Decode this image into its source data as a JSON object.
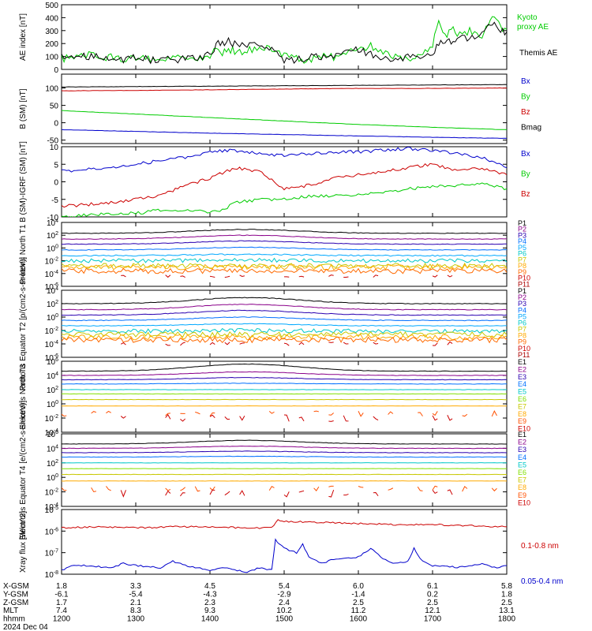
{
  "chart_data": [
    {
      "type": "line",
      "ylabel": "AE index [nT]",
      "ylim": [
        0,
        500
      ],
      "ytick_labels": [
        "0",
        "100",
        "200",
        "300",
        "400",
        "500"
      ],
      "ytick_values": [
        0,
        100,
        200,
        300,
        400,
        500
      ],
      "log": false,
      "series": [
        {
          "name": "Kyoto proxy AE",
          "color": "#00cc00",
          "x": [
            1200,
            1210,
            1220,
            1230,
            1240,
            1250,
            1300,
            1310,
            1320,
            1330,
            1340,
            1350,
            1400,
            1405,
            1410,
            1415,
            1420,
            1430,
            1440,
            1450,
            1500,
            1510,
            1520,
            1530,
            1540,
            1550,
            1600,
            1610,
            1620,
            1630,
            1640,
            1650,
            1700,
            1705,
            1710,
            1715,
            1720,
            1730,
            1740,
            1745,
            1750,
            1755,
            1800
          ],
          "y": [
            80,
            95,
            110,
            100,
            90,
            85,
            95,
            80,
            75,
            90,
            85,
            80,
            110,
            170,
            120,
            150,
            145,
            140,
            180,
            170,
            100,
            80,
            70,
            110,
            90,
            120,
            160,
            180,
            120,
            90,
            80,
            100,
            200,
            350,
            250,
            330,
            260,
            300,
            240,
            340,
            400,
            330,
            310
          ]
        },
        {
          "name": "Themis AE",
          "color": "#000000",
          "x": [
            1200,
            1210,
            1220,
            1230,
            1240,
            1250,
            1300,
            1310,
            1320,
            1330,
            1340,
            1350,
            1400,
            1405,
            1410,
            1415,
            1420,
            1430,
            1440,
            1450,
            1500,
            1510,
            1520,
            1530,
            1540,
            1550,
            1600,
            1610,
            1620,
            1630,
            1640,
            1650,
            1700,
            1705,
            1710,
            1715,
            1720,
            1730,
            1740,
            1745,
            1750,
            1755,
            1800
          ],
          "y": [
            100,
            90,
            105,
            95,
            90,
            80,
            90,
            75,
            70,
            80,
            80,
            90,
            120,
            190,
            210,
            220,
            200,
            170,
            210,
            150,
            80,
            70,
            90,
            100,
            110,
            120,
            150,
            120,
            90,
            80,
            90,
            100,
            120,
            190,
            230,
            200,
            240,
            230,
            300,
            320,
            350,
            310,
            290
          ]
        }
      ]
    },
    {
      "type": "line",
      "ylabel": "B (SM) [nT]",
      "ylim": [
        -60,
        140
      ],
      "ytick_labels": [
        "-50",
        "0",
        "50",
        "100"
      ],
      "ytick_values": [
        -50,
        0,
        50,
        100
      ],
      "log": false,
      "series": [
        {
          "name": "Bx",
          "color": "#0000cc",
          "x": [
            1200,
            1300,
            1400,
            1500,
            1600,
            1700,
            1800
          ],
          "y": [
            -20,
            -25,
            -30,
            -34,
            -38,
            -42,
            -45
          ]
        },
        {
          "name": "By",
          "color": "#00cc00",
          "x": [
            1200,
            1300,
            1400,
            1500,
            1600,
            1700,
            1800
          ],
          "y": [
            35,
            25,
            15,
            5,
            -5,
            -13,
            -20
          ]
        },
        {
          "name": "Bz",
          "color": "#cc0000",
          "x": [
            1200,
            1300,
            1400,
            1500,
            1600,
            1700,
            1800
          ],
          "y": [
            92,
            93,
            95,
            97,
            99,
            99,
            100
          ]
        },
        {
          "name": "Bmag",
          "color": "#000000",
          "x": [
            1200,
            1800
          ],
          "y": [
            103,
            110
          ]
        }
      ]
    },
    {
      "type": "line",
      "ylabel": "B (SM)-IGRF (SM) [nT]",
      "ylim": [
        -10,
        10
      ],
      "ytick_labels": [
        "-10",
        "-5",
        "0",
        "5",
        "10"
      ],
      "ytick_values": [
        -10,
        -5,
        0,
        5,
        10
      ],
      "log": false,
      "series": [
        {
          "name": "Bx",
          "color": "#0000cc",
          "x": [
            1200,
            1220,
            1240,
            1300,
            1320,
            1340,
            1400,
            1420,
            1440,
            1500,
            1520,
            1540,
            1600,
            1620,
            1640,
            1700,
            1720,
            1740,
            1800
          ],
          "y": [
            3,
            3.5,
            4,
            5,
            6,
            7,
            8.5,
            9,
            8,
            7.5,
            8,
            8.5,
            8.5,
            9,
            9.5,
            9,
            8,
            7,
            4
          ]
        },
        {
          "name": "By",
          "color": "#00cc00",
          "x": [
            1200,
            1220,
            1240,
            1300,
            1320,
            1340,
            1400,
            1410,
            1420,
            1440,
            1500,
            1520,
            1540,
            1600,
            1620,
            1640,
            1700,
            1720,
            1740,
            1800
          ],
          "y": [
            -10,
            -9.5,
            -9,
            -9,
            -8,
            -8,
            -8.5,
            -8,
            -6,
            -5,
            -5,
            -4,
            -4,
            -3.5,
            -3,
            -2,
            -1.5,
            -1,
            -0.5,
            -2
          ]
        },
        {
          "name": "Bz",
          "color": "#cc0000",
          "x": [
            1200,
            1220,
            1240,
            1300,
            1320,
            1340,
            1400,
            1420,
            1440,
            1500,
            1520,
            1540,
            1600,
            1620,
            1640,
            1700,
            1720,
            1740,
            1800
          ],
          "y": [
            -7,
            -6.5,
            -6,
            -5,
            -4,
            -1,
            1,
            4,
            3,
            -2,
            -1,
            1,
            2,
            3,
            4,
            5,
            3,
            4,
            2
          ]
        }
      ]
    },
    {
      "type": "line",
      "ylabel": "Protons North T1",
      "ylim_log": [
        -6,
        4
      ],
      "ytick_labels": [
        "10^4",
        "10^2",
        "10^0",
        "10^-2",
        "10^-4",
        "10^-6"
      ],
      "ytick_values": [
        4,
        2,
        0,
        -2,
        -4,
        -6
      ],
      "log": true,
      "series": [
        {
          "name": "P1",
          "color": "#000000",
          "level": 2.3,
          "bump": 0.6,
          "noise": 0.05
        },
        {
          "name": "P2",
          "color": "#8a008a",
          "level": 1.4,
          "bump": 0.6,
          "noise": 0.05
        },
        {
          "name": "P3",
          "color": "#2a00b0",
          "level": 0.6,
          "bump": 0.5,
          "noise": 0.05
        },
        {
          "name": "P4",
          "color": "#0070ff",
          "level": -0.3,
          "bump": 0.4,
          "noise": 0.05
        },
        {
          "name": "P5",
          "color": "#00a8ff",
          "level": -1.2,
          "bump": 0.2,
          "noise": 0.1
        },
        {
          "name": "P6",
          "color": "#00c8c8",
          "level": -2.0,
          "bump": 0.1,
          "noise": 0.3
        },
        {
          "name": "P7",
          "color": "#c8c800",
          "level": -2.8,
          "bump": 0,
          "noise": 0.4
        },
        {
          "name": "P8",
          "color": "#ffaa00",
          "level": -3.0,
          "bump": 0,
          "noise": 0.4
        },
        {
          "name": "P9",
          "color": "#ff6a00",
          "level": -3.6,
          "bump": 0,
          "noise": 0.4
        },
        {
          "name": "P10",
          "color": "#cc0000",
          "level": -4.4,
          "bump": 0,
          "noise": 0.2,
          "dashes": true
        },
        {
          "name": "P11",
          "color": "#aa0000",
          "level": -5.0,
          "bump": 0,
          "noise": 0.0,
          "hidden": true
        }
      ]
    },
    {
      "type": "line",
      "ylabel": "Protons Equator T2 [p/(cm2-s-sr-keV)]",
      "ylim_log": [
        -6,
        4
      ],
      "ytick_labels": [
        "10^4",
        "10^2",
        "10^0",
        "10^-2",
        "10^-4",
        "10^-6"
      ],
      "ytick_values": [
        4,
        2,
        0,
        -2,
        -4,
        -6
      ],
      "log": true,
      "series": [
        {
          "name": "P1",
          "color": "#000000",
          "level": 2.0,
          "bump": 0.9,
          "noise": 0.05
        },
        {
          "name": "P2",
          "color": "#8a008a",
          "level": 1.1,
          "bump": 0.8,
          "noise": 0.05
        },
        {
          "name": "P3",
          "color": "#2a00b0",
          "level": 0.3,
          "bump": 0.7,
          "noise": 0.05
        },
        {
          "name": "P4",
          "color": "#0070ff",
          "level": -0.5,
          "bump": 0.5,
          "noise": 0.05
        },
        {
          "name": "P5",
          "color": "#00a8ff",
          "level": -1.3,
          "bump": 0.3,
          "noise": 0.05
        },
        {
          "name": "P6",
          "color": "#00c8c8",
          "level": -2.1,
          "bump": 0.1,
          "noise": 0.3
        },
        {
          "name": "P7",
          "color": "#c8c800",
          "level": -2.6,
          "bump": 0,
          "noise": 0.4
        },
        {
          "name": "P8",
          "color": "#ffaa00",
          "level": -3.0,
          "bump": 0,
          "noise": 0.4
        },
        {
          "name": "P9",
          "color": "#ff6a00",
          "level": -3.4,
          "bump": 0,
          "noise": 0.4
        },
        {
          "name": "P10",
          "color": "#cc0000",
          "level": -4.0,
          "bump": 0,
          "noise": 0.3,
          "dashes": true
        },
        {
          "name": "P11",
          "color": "#aa0000",
          "level": -5.0,
          "bump": 0,
          "noise": 0.0,
          "hidden": true
        }
      ]
    },
    {
      "type": "line",
      "ylabel": "Electrons North T3",
      "ylim_log": [
        -4,
        6
      ],
      "ytick_labels": [
        "10^6",
        "10^4",
        "10^2",
        "10^0",
        "10^-2",
        "10^-4"
      ],
      "ytick_values": [
        6,
        4,
        2,
        0,
        -2,
        -4
      ],
      "log": true,
      "series": [
        {
          "name": "E1",
          "color": "#000000",
          "level": 4.6,
          "bump": 1.0,
          "noise": 0.03
        },
        {
          "name": "E2",
          "color": "#8a008a",
          "level": 4.0,
          "bump": 0.5,
          "noise": 0.03
        },
        {
          "name": "E3",
          "color": "#2a00b0",
          "level": 3.4,
          "bump": 0.3,
          "noise": 0.03
        },
        {
          "name": "E4",
          "color": "#0070ff",
          "level": 2.8,
          "bump": 0.1,
          "noise": 0.03
        },
        {
          "name": "E5",
          "color": "#00c8c8",
          "level": 2.0,
          "bump": 0,
          "noise": 0.02
        },
        {
          "name": "E6",
          "color": "#80e000",
          "level": 1.4,
          "bump": 0,
          "noise": 0.02
        },
        {
          "name": "E7",
          "color": "#c8c800",
          "level": 0.6,
          "bump": 0,
          "noise": 0.02
        },
        {
          "name": "E8",
          "color": "#ffaa00",
          "level": -0.3,
          "bump": 0,
          "noise": 0.02
        },
        {
          "name": "E9",
          "color": "#ff5000",
          "level": -1.4,
          "bump": 0,
          "noise": 0.4,
          "dashes": true
        },
        {
          "name": "E10",
          "color": "#cc0000",
          "level": -2.0,
          "bump": 0,
          "noise": 0.5,
          "dashes": true
        }
      ]
    },
    {
      "type": "line",
      "ylabel": "Electrons Equator T4 [e/(cm2-s-sr-keV)]",
      "ylim_log": [
        -4,
        6
      ],
      "ytick_labels": [
        "10^6",
        "10^4",
        "10^2",
        "10^0",
        "10^-2",
        "10^-4"
      ],
      "ytick_values": [
        6,
        4,
        2,
        0,
        -2,
        -4
      ],
      "log": true,
      "series": [
        {
          "name": "E1",
          "color": "#000000",
          "level": 4.6,
          "bump": 0.5,
          "noise": 0.03
        },
        {
          "name": "E2",
          "color": "#8a008a",
          "level": 4.0,
          "bump": 0.3,
          "noise": 0.03
        },
        {
          "name": "E3",
          "color": "#2a00b0",
          "level": 3.4,
          "bump": 0.2,
          "noise": 0.03
        },
        {
          "name": "E4",
          "color": "#0070ff",
          "level": 2.8,
          "bump": 0.1,
          "noise": 0.03
        },
        {
          "name": "E5",
          "color": "#00c8c8",
          "level": 2.0,
          "bump": 0,
          "noise": 0.02
        },
        {
          "name": "E6",
          "color": "#80e000",
          "level": 1.2,
          "bump": 0,
          "noise": 0.02
        },
        {
          "name": "E7",
          "color": "#c8c800",
          "level": 0.4,
          "bump": 0,
          "noise": 0.02
        },
        {
          "name": "E8",
          "color": "#ffaa00",
          "level": -0.5,
          "bump": 0,
          "noise": 0.02
        },
        {
          "name": "E9",
          "color": "#ff5000",
          "level": -1.6,
          "bump": 0,
          "noise": 0.4,
          "dashes": true
        },
        {
          "name": "E10",
          "color": "#cc0000",
          "level": -2.2,
          "bump": 0,
          "noise": 0.5,
          "dashes": true
        }
      ]
    },
    {
      "type": "line",
      "ylabel": "Xray flux [W/m^2]",
      "ylim_log": [
        -8,
        -5
      ],
      "ytick_labels": [
        "10^-5",
        "10^-6",
        "10^-7",
        "10^-8"
      ],
      "ytick_values": [
        -5,
        -6,
        -7,
        -8
      ],
      "log": true,
      "series": [
        {
          "name": "0.1-0.8 nm",
          "color": "#cc0000",
          "x": [
            1200,
            1230,
            1300,
            1330,
            1400,
            1430,
            1450,
            1455,
            1500,
            1530,
            1600,
            1630,
            1700,
            1730,
            1800
          ],
          "y": [
            -5.85,
            -5.8,
            -5.85,
            -5.8,
            -5.8,
            -5.85,
            -5.85,
            -5.5,
            -5.55,
            -5.6,
            -5.65,
            -5.7,
            -5.7,
            -5.75,
            -5.8
          ]
        },
        {
          "name": "0.05-0.4 nm",
          "color": "#0000cc",
          "x": [
            1200,
            1210,
            1220,
            1240,
            1250,
            1300,
            1320,
            1330,
            1340,
            1400,
            1410,
            1430,
            1440,
            1450,
            1453,
            1456,
            1500,
            1510,
            1515,
            1520,
            1530,
            1540,
            1600,
            1610,
            1620,
            1630,
            1640,
            1645,
            1650,
            1700,
            1710,
            1720,
            1730,
            1740,
            1750,
            1800
          ],
          "y": [
            -7.8,
            -7.6,
            -7.6,
            -7.7,
            -7.5,
            -7.6,
            -7.7,
            -7.4,
            -7.6,
            -7.8,
            -7.7,
            -7.9,
            -7.7,
            -7.8,
            -6.4,
            -6.6,
            -6.8,
            -7.0,
            -6.6,
            -7.2,
            -7.5,
            -7.3,
            -7.2,
            -6.8,
            -7.3,
            -7.5,
            -7.4,
            -6.8,
            -7.3,
            -7.6,
            -7.6,
            -7.7,
            -7.6,
            -7.5,
            -7.7,
            -7.6
          ]
        }
      ]
    }
  ],
  "x_axis": {
    "range": [
      1200,
      1800
    ],
    "rows": [
      {
        "label": "X-GSM",
        "values": [
          "1.8",
          "3.3",
          "4.5",
          "5.4",
          "6.0",
          "6.1",
          "5.8"
        ]
      },
      {
        "label": "Y-GSM",
        "values": [
          "-6.1",
          "-5.4",
          "-4.3",
          "-2.9",
          "-1.4",
          "0.2",
          "1.8"
        ]
      },
      {
        "label": "Z-GSM",
        "values": [
          "1.7",
          "2.1",
          "2.3",
          "2.4",
          "2.5",
          "2.5",
          "2.5"
        ]
      },
      {
        "label": "MLT",
        "values": [
          "7.4",
          "8.3",
          "9.3",
          "10.2",
          "11.2",
          "12.1",
          "13.1"
        ]
      },
      {
        "label": "hhmm",
        "values": [
          "1200",
          "1300",
          "1400",
          "1500",
          "1600",
          "1700",
          "1800"
        ]
      }
    ],
    "date": "2024 Dec 04"
  }
}
